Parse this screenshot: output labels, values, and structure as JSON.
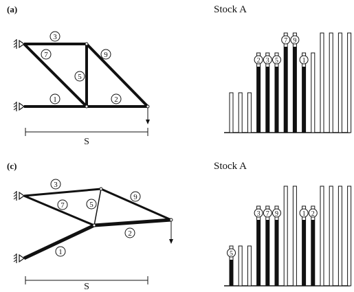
{
  "panels": [
    {
      "label": "(a)",
      "stock_title": "Stock A",
      "span_label": "S"
    },
    {
      "label": "(c)",
      "stock_title": "Stock A",
      "span_label": "S"
    }
  ],
  "truss_a": {
    "members": [
      {
        "id": "member-1",
        "label": "1"
      },
      {
        "id": "member-2",
        "label": "2"
      },
      {
        "id": "member-3",
        "label": "3"
      },
      {
        "id": "member-5",
        "label": "5"
      },
      {
        "id": "member-7",
        "label": "7"
      },
      {
        "id": "member-9",
        "label": "9"
      }
    ]
  },
  "truss_c": {
    "members": [
      {
        "id": "member-1",
        "label": "1"
      },
      {
        "id": "member-2",
        "label": "2"
      },
      {
        "id": "member-3",
        "label": "3"
      },
      {
        "id": "member-5",
        "label": "5"
      },
      {
        "id": "member-7",
        "label": "7"
      },
      {
        "id": "member-9",
        "label": "9"
      }
    ]
  },
  "stock_a": {
    "bars": [
      {
        "height": 1,
        "used": false,
        "labels": []
      },
      {
        "height": 1,
        "used": false,
        "labels": []
      },
      {
        "height": 1,
        "used": false,
        "labels": []
      },
      {
        "height": 2,
        "used": true,
        "labels": [
          "2"
        ]
      },
      {
        "height": 2,
        "used": true,
        "labels": [
          "3"
        ]
      },
      {
        "height": 2,
        "used": true,
        "labels": [
          "5"
        ]
      },
      {
        "height": 2.5,
        "used": true,
        "labels": [
          "7"
        ]
      },
      {
        "height": 2.5,
        "used": true,
        "labels": [
          "9"
        ]
      },
      {
        "height": 2,
        "used": true,
        "labels": [
          "1"
        ]
      },
      {
        "height": 2,
        "used": false,
        "labels": []
      },
      {
        "height": 2.5,
        "used": false,
        "labels": []
      },
      {
        "height": 2.5,
        "used": false,
        "labels": []
      },
      {
        "height": 2.5,
        "used": false,
        "labels": []
      },
      {
        "height": 2.5,
        "used": false,
        "labels": []
      }
    ]
  },
  "stock_c": {
    "bars": [
      {
        "height": 1,
        "used": true,
        "labels": [
          "5"
        ]
      },
      {
        "height": 1,
        "used": false,
        "labels": []
      },
      {
        "height": 1,
        "used": false,
        "labels": []
      },
      {
        "height": 2,
        "used": true,
        "labels": [
          "3"
        ]
      },
      {
        "height": 2,
        "used": true,
        "labels": [
          "7"
        ]
      },
      {
        "height": 2,
        "used": true,
        "labels": [
          "9"
        ]
      },
      {
        "height": 2.5,
        "used": false,
        "labels": []
      },
      {
        "height": 2.5,
        "used": false,
        "labels": []
      },
      {
        "height": 2,
        "used": true,
        "labels": [
          "1"
        ]
      },
      {
        "height": 2,
        "used": true,
        "labels": [
          "2"
        ]
      },
      {
        "height": 2.5,
        "used": false,
        "labels": []
      },
      {
        "height": 2.5,
        "used": false,
        "labels": []
      },
      {
        "height": 2.5,
        "used": false,
        "labels": []
      },
      {
        "height": 2.5,
        "used": false,
        "labels": []
      }
    ]
  }
}
